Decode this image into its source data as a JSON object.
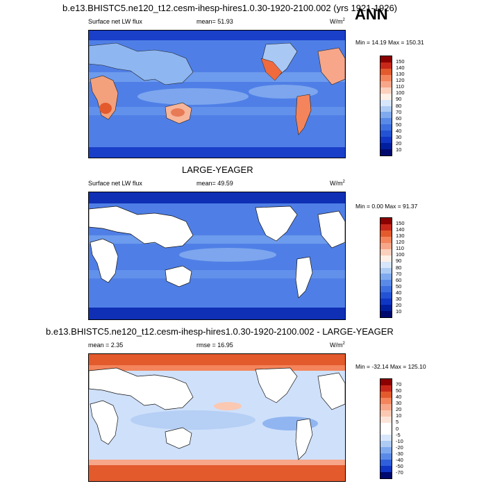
{
  "season": "ANN",
  "panels": [
    {
      "title": "b.e13.BHISTC5.ne120_t12.cesm-ihesp-hires1.0.30-1920-2100.002 (yrs 1921-1926)",
      "variable": "Surface net LW flux",
      "stat": "mean=  51.93",
      "units": "W/m",
      "units_sup": "2",
      "minmax": "Min =  14.19 Max = 150.31",
      "levels": [
        "150",
        "140",
        "130",
        "120",
        "110",
        "100",
        "90",
        "80",
        "70",
        "60",
        "50",
        "40",
        "30",
        "20",
        "10"
      ],
      "colors": [
        "#8b0000",
        "#c8281a",
        "#e35a2d",
        "#f4845b",
        "#f7a689",
        "#fbd0bd",
        "#fff0e8",
        "#d7e6fb",
        "#aecbf4",
        "#7faaef",
        "#5a8ae8",
        "#3d6fe0",
        "#2353d4",
        "#0f36c4",
        "#001f9e",
        "#000a6e"
      ]
    },
    {
      "title": "LARGE-YEAGER",
      "variable": "Surface net LW flux",
      "stat": "mean=  49.59",
      "units": "W/m",
      "units_sup": "2",
      "minmax": "Min =   0.00 Max =  91.37",
      "levels": [
        "150",
        "140",
        "130",
        "120",
        "110",
        "100",
        "90",
        "80",
        "70",
        "60",
        "50",
        "40",
        "30",
        "20",
        "10"
      ],
      "colors": [
        "#8b0000",
        "#c8281a",
        "#e35a2d",
        "#f4845b",
        "#f7a689",
        "#fbd0bd",
        "#fff0e8",
        "#d7e6fb",
        "#aecbf4",
        "#7faaef",
        "#5a8ae8",
        "#3d6fe0",
        "#2353d4",
        "#0f36c4",
        "#001f9e",
        "#000a6e"
      ]
    },
    {
      "title": "b.e13.BHISTC5.ne120_t12.cesm-ihesp-hires1.0.30-1920-2100.002 - LARGE-YEAGER",
      "variable": "mean =   2.35",
      "stat": "rmse =  16.95",
      "units": "W/m",
      "units_sup": "2",
      "minmax": "Min = -32.14 Max = 125.10",
      "levels": [
        "70",
        "50",
        "40",
        "30",
        "20",
        "10",
        "5",
        "0",
        "-5",
        "-10",
        "-20",
        "-30",
        "-40",
        "-50",
        "-70"
      ],
      "colors": [
        "#8b0000",
        "#c8281a",
        "#e35a2d",
        "#f4845b",
        "#f7a689",
        "#fbc8b2",
        "#fde4d8",
        "#ffffff",
        "#ffffff",
        "#d7e6fb",
        "#aecbf4",
        "#7faaef",
        "#5a8ae8",
        "#2f5fdb",
        "#0f36c4",
        "#000a6e"
      ]
    }
  ]
}
